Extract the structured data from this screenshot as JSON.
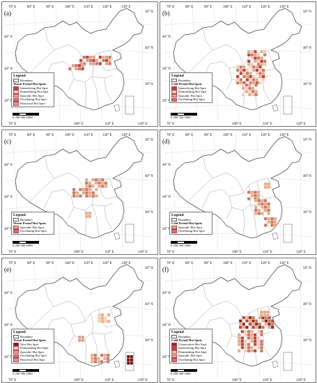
{
  "colors": {
    "boundary": "#4a4a4a",
    "intensifying": "#b5473c",
    "diminishing": "#f2ccb5",
    "sporadic": "#e8a98a",
    "oscillating": "#c57a66",
    "historical": "#d9a08a",
    "new": "#7a1010",
    "consecutive": "#8c2a22"
  },
  "panels": [
    {
      "label": "(a)",
      "top_ticks": [
        "70° E",
        "80° E",
        "90° E",
        "100° E",
        "110° E",
        "120° E",
        "130° E"
      ],
      "bottom_ticks": [
        "70° E",
        "100° E",
        "110° E",
        "120° E"
      ],
      "right_ticks": [
        "50° N",
        "40° N",
        "30° N"
      ],
      "left_ticks": [
        "40° N",
        "30° N",
        "20° N"
      ],
      "legend": {
        "title": "Legend",
        "boundary": "Boundary",
        "subtitle": "Warm Period Hot Spots",
        "items": [
          {
            "label": "Intensifying Hot Spot",
            "color": "intensifying"
          },
          {
            "label": "Diminishing Hot Spot",
            "color": "diminishing"
          },
          {
            "label": "Sporadic Hot Spot",
            "color": "sporadic"
          },
          {
            "label": "Oscillating Hot Spot",
            "color": "oscillating"
          },
          {
            "label": "Historical Hot Spot",
            "color": "historical"
          }
        ]
      },
      "scale": "0  250 500      1000"
    },
    {
      "label": "(b)",
      "top_ticks": [
        "70° E",
        "80° E",
        "90° E",
        "100° E",
        "110° E",
        "120° E",
        "130° E"
      ],
      "bottom_ticks": [
        "70° E",
        "100° E",
        "110° E",
        "120° E"
      ],
      "right_ticks": [
        "50° N",
        "40° N",
        "30° N"
      ],
      "left_ticks": [
        "40° N",
        "30° N",
        "20° N"
      ],
      "legend": {
        "title": "Legend",
        "boundary": "Boundary",
        "subtitle": "Cold Period Hot Spots",
        "items": [
          {
            "label": "Intensifying Hot Spot",
            "color": "intensifying"
          },
          {
            "label": "Diminishing Hot Spot",
            "color": "diminishing"
          },
          {
            "label": "Sporadic Hot Spot",
            "color": "sporadic"
          },
          {
            "label": "Oscillating Hot Spot",
            "color": "oscillating"
          }
        ]
      },
      "scale": "0  250 500      1000"
    },
    {
      "label": "(c)",
      "top_ticks": [
        "70° E",
        "80° E",
        "90° E",
        "100° E",
        "110° E",
        "120° E",
        "130° E"
      ],
      "bottom_ticks": [
        "70° E",
        "100° E",
        "110° E",
        "120° E"
      ],
      "right_ticks": [
        "50° N",
        "40° N",
        "30° N"
      ],
      "left_ticks": [
        "40° N",
        "30° N",
        "20° N"
      ],
      "legend": {
        "title": "Legend",
        "boundary": "Boundary",
        "subtitle": "Warm Period Hot Spots",
        "items": [
          {
            "label": "Sporadic Hot Spot",
            "color": "sporadic"
          },
          {
            "label": "Oscillating Hot Spot",
            "color": "oscillating"
          }
        ]
      },
      "scale": "0  250 500      1000"
    },
    {
      "label": "(d)",
      "top_ticks": [
        "70° E",
        "80° E",
        "90° E",
        "100° E",
        "110° E",
        "120° E",
        "130° E"
      ],
      "bottom_ticks": [
        "70° E",
        "100° E",
        "110° E",
        "120° E"
      ],
      "right_ticks": [
        "50° N",
        "40° N",
        "30° N"
      ],
      "left_ticks": [
        "40° N",
        "30° N",
        "20° N"
      ],
      "legend": {
        "title": "Legend",
        "boundary": "Boundary",
        "subtitle": "Cold Period Hot Spots",
        "items": [
          {
            "label": "Sporadic Hot Spot",
            "color": "sporadic"
          },
          {
            "label": "Oscillating Hot Spot",
            "color": "oscillating"
          }
        ]
      },
      "scale": "0  250 500      1000"
    },
    {
      "label": "(e)",
      "top_ticks": [
        "70° E",
        "80° E",
        "90° E",
        "100° E",
        "110° E",
        "120° E",
        "130° E"
      ],
      "bottom_ticks": [
        "70° E",
        "100° E",
        "110° E",
        "120° E"
      ],
      "right_ticks": [
        "50° N",
        "40° N",
        "30° N"
      ],
      "left_ticks": [
        "40° N",
        "30° N",
        "20° N"
      ],
      "legend": {
        "title": "Legend",
        "boundary": "Boundary",
        "subtitle": "Warm Period Hot Spots",
        "items": [
          {
            "label": "New Hot Spot",
            "color": "new"
          },
          {
            "label": "Diminishing Hot Spot",
            "color": "diminishing"
          },
          {
            "label": "Sporadic Hot Spot",
            "color": "sporadic"
          },
          {
            "label": "Oscillating Hot Spot",
            "color": "oscillating"
          },
          {
            "label": "Historical Hot Spot",
            "color": "historical"
          }
        ]
      },
      "scale": "0  250 500      1000"
    },
    {
      "label": "(f)",
      "top_ticks": [
        "70° E",
        "80° E",
        "90° E",
        "100° E",
        "110° E",
        "120° E",
        "130° E"
      ],
      "bottom_ticks": [
        "70° E",
        "100° E",
        "110° E",
        "120° E"
      ],
      "right_ticks": [
        "50° N",
        "40° N",
        "30° N"
      ],
      "left_ticks": [
        "40° N",
        "30° N",
        "20° N"
      ],
      "legend": {
        "title": "Legend",
        "boundary": "Boundary",
        "subtitle": "Cold Period Hot Spots",
        "items": [
          {
            "label": "Consecutive Hot Spot",
            "color": "consecutive"
          },
          {
            "label": "Intensifying Hot Spot",
            "color": "intensifying"
          },
          {
            "label": "Diminishing Hot Spot",
            "color": "diminishing"
          },
          {
            "label": "Sporadic Hot Spot",
            "color": "sporadic"
          },
          {
            "label": "Oscillating Hot Spot",
            "color": "oscillating"
          }
        ]
      },
      "scale": "0  250 500      1000"
    }
  ]
}
